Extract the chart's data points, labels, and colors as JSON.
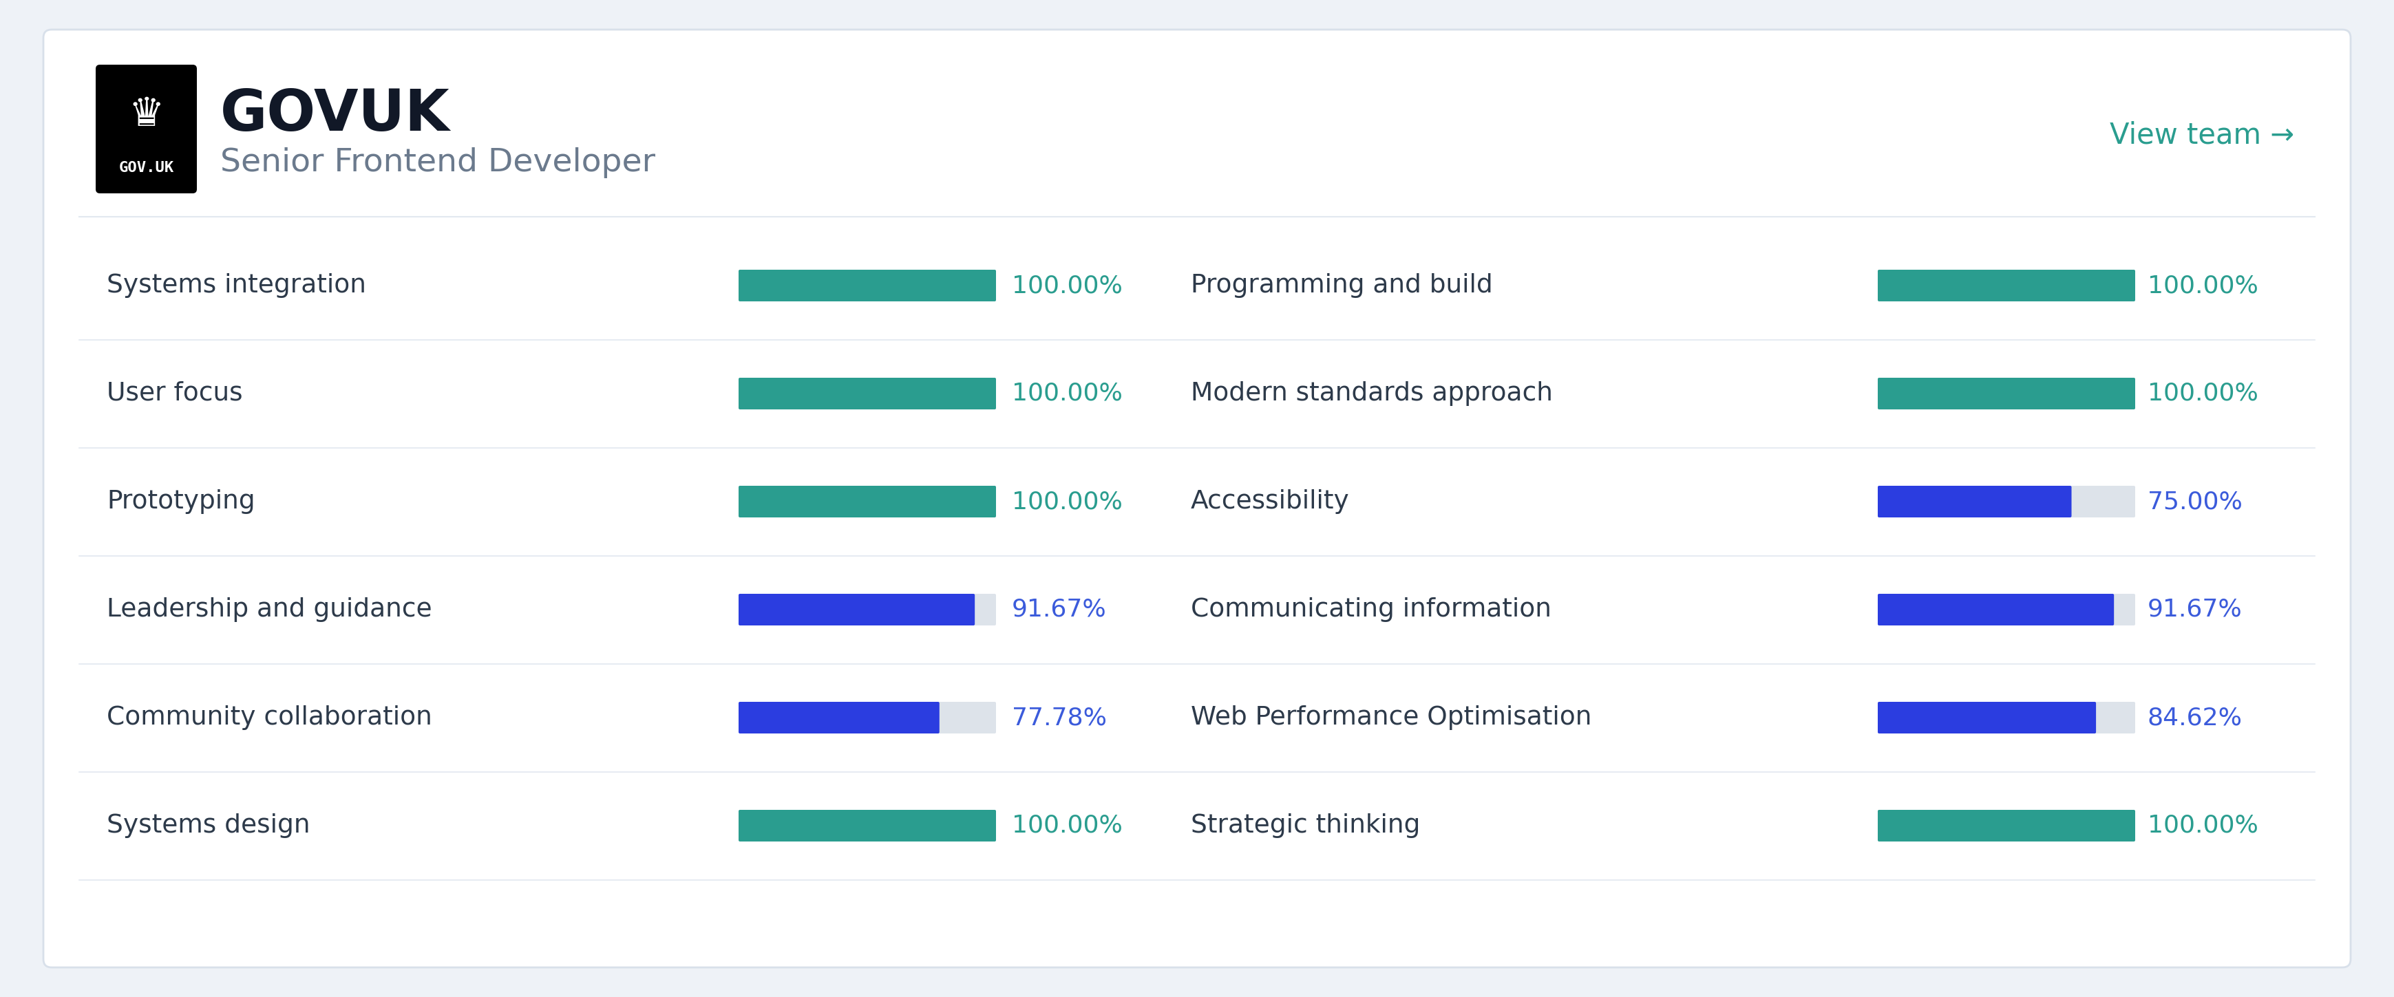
{
  "title": "GOVUK",
  "subtitle": "Senior Frontend Developer",
  "view_team_text": "View team →",
  "background_color": "#eef2f7",
  "card_color": "#ffffff",
  "left_skills": [
    {
      "name": "Systems integration",
      "value": 1.0,
      "pct": "100.00%",
      "color": "#2a9d8f"
    },
    {
      "name": "User focus",
      "value": 1.0,
      "pct": "100.00%",
      "color": "#2a9d8f"
    },
    {
      "name": "Prototyping",
      "value": 1.0,
      "pct": "100.00%",
      "color": "#2a9d8f"
    },
    {
      "name": "Leadership and guidance",
      "value": 0.9167,
      "pct": "91.67%",
      "color": "#2b3de0"
    },
    {
      "name": "Community collaboration",
      "value": 0.7778,
      "pct": "77.78%",
      "color": "#2b3de0"
    },
    {
      "name": "Systems design",
      "value": 1.0,
      "pct": "100.00%",
      "color": "#2a9d8f"
    }
  ],
  "right_skills": [
    {
      "name": "Programming and build",
      "value": 1.0,
      "pct": "100.00%",
      "color": "#2a9d8f"
    },
    {
      "name": "Modern standards approach",
      "value": 1.0,
      "pct": "100.00%",
      "color": "#2a9d8f"
    },
    {
      "name": "Accessibility",
      "value": 0.75,
      "pct": "75.00%",
      "color": "#2b3de0"
    },
    {
      "name": "Communicating information",
      "value": 0.9167,
      "pct": "91.67%",
      "color": "#2b3de0"
    },
    {
      "name": "Web Performance Optimisation",
      "value": 0.8462,
      "pct": "84.62%",
      "color": "#2b3de0"
    },
    {
      "name": "Strategic thinking",
      "value": 1.0,
      "pct": "100.00%",
      "color": "#2a9d8f"
    }
  ],
  "bar_bg_color": "#dde3ea",
  "teal_color": "#2a9d8f",
  "blue_color": "#2b3de0",
  "teal_pct_color": "#2a9d8f",
  "blue_pct_color": "#3b5bdb",
  "label_color": "#2d3a4a",
  "subtitle_color": "#6b7a8d",
  "view_team_color": "#2a9d8f",
  "divider_color": "#e2e8f0",
  "card_border_color": "#d8e0ea"
}
